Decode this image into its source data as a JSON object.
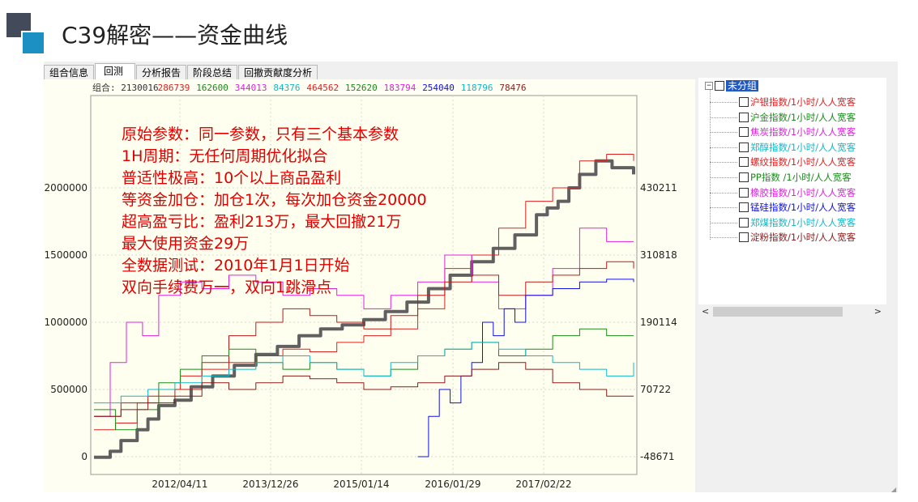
{
  "slide": {
    "title": "C39解密——资金曲线"
  },
  "tabs": [
    {
      "label": "组合信息",
      "active": false
    },
    {
      "label": "回测",
      "active": true
    },
    {
      "label": "分析报告",
      "active": false
    },
    {
      "label": "阶段总结",
      "active": false
    },
    {
      "label": "回撤贡献度分析",
      "active": false
    }
  ],
  "header_values": {
    "prefix": "组合: 2130016",
    "items": [
      {
        "value": "286739",
        "color": "#e02020"
      },
      {
        "value": "162600",
        "color": "#1a8a1a"
      },
      {
        "value": "344013",
        "color": "#e020e0"
      },
      {
        "value": "84376",
        "color": "#10b8c8"
      },
      {
        "value": "464562",
        "color": "#e02020"
      },
      {
        "value": "152620",
        "color": "#1a8a1a"
      },
      {
        "value": "183794",
        "color": "#e020e0"
      },
      {
        "value": "254040",
        "color": "#1010e0"
      },
      {
        "value": "118796",
        "color": "#10b8c8"
      },
      {
        "value": "78476",
        "color": "#8b1a1a"
      }
    ]
  },
  "annotations": [
    "原始参数：同一参数，只有三个基本参数",
    "1H周期：无任何周期优化拟合",
    "普适性极高：10个以上商品盈利",
    "等资金加仓：加仓1次，每次加仓资金20000",
    "超高盈亏比：盈利213万，最大回撤21万",
    "最大使用资金29万",
    "全数据测试：2010年1月1日开始",
    "双向手续费万一，双向1跳滑点"
  ],
  "chart_data": {
    "type": "line",
    "x_ticks": [
      "2012/04/11",
      "2013/12/26",
      "2015/01/14",
      "2016/01/29",
      "2017/02/22"
    ],
    "left_axis": {
      "ticks": [
        "2000000",
        "1500000",
        "1000000",
        "500000",
        "0"
      ],
      "range": [
        0,
        2000000
      ]
    },
    "right_axis": {
      "ticks": [
        "430211",
        "310818",
        "190114",
        "70722",
        "-48671"
      ]
    },
    "grid": true,
    "series": [
      {
        "color": "#606060",
        "width": 4,
        "points": [
          [
            0,
            -5
          ],
          [
            3,
            40
          ],
          [
            5,
            120
          ],
          [
            8,
            200
          ],
          [
            10,
            280
          ],
          [
            12,
            380
          ],
          [
            15,
            420
          ],
          [
            18,
            520
          ],
          [
            22,
            600
          ],
          [
            26,
            680
          ],
          [
            30,
            760
          ],
          [
            34,
            820
          ],
          [
            38,
            900
          ],
          [
            42,
            950
          ],
          [
            46,
            980
          ],
          [
            50,
            1020
          ],
          [
            54,
            1080
          ],
          [
            58,
            1150
          ],
          [
            62,
            1250
          ],
          [
            66,
            1350
          ],
          [
            70,
            1450
          ],
          [
            74,
            1550
          ],
          [
            78,
            1650
          ],
          [
            82,
            1800
          ],
          [
            84,
            1850
          ],
          [
            86,
            1900
          ],
          [
            88,
            2000
          ],
          [
            90,
            2100
          ],
          [
            93,
            2200
          ],
          [
            96,
            2150
          ],
          [
            100,
            2100
          ]
        ]
      },
      {
        "color": "#e02020",
        "width": 1,
        "points": [
          [
            0,
            200
          ],
          [
            4,
            250
          ],
          [
            8,
            400
          ],
          [
            12,
            500
          ],
          [
            16,
            600
          ],
          [
            20,
            650
          ],
          [
            25,
            700
          ],
          [
            30,
            750
          ],
          [
            35,
            800
          ],
          [
            40,
            780
          ],
          [
            45,
            850
          ],
          [
            50,
            900
          ],
          [
            55,
            950
          ],
          [
            60,
            1100
          ],
          [
            65,
            1400
          ],
          [
            70,
            1500
          ],
          [
            75,
            1700
          ],
          [
            80,
            1900
          ],
          [
            85,
            2000
          ],
          [
            90,
            2200
          ],
          [
            95,
            2250
          ],
          [
            100,
            2200
          ]
        ]
      },
      {
        "color": "#e020e0",
        "width": 1,
        "points": [
          [
            0,
            300
          ],
          [
            3,
            700
          ],
          [
            6,
            1000
          ],
          [
            9,
            900
          ],
          [
            12,
            1200
          ],
          [
            16,
            1300
          ],
          [
            20,
            1250
          ],
          [
            25,
            1350
          ],
          [
            30,
            1300
          ],
          [
            35,
            1200
          ],
          [
            40,
            1250
          ],
          [
            45,
            1200
          ],
          [
            50,
            1100
          ],
          [
            55,
            1200
          ],
          [
            60,
            1300
          ],
          [
            65,
            1500
          ],
          [
            70,
            1300
          ],
          [
            75,
            1100
          ],
          [
            80,
            1200
          ],
          [
            85,
            1400
          ],
          [
            90,
            1700
          ],
          [
            95,
            1600
          ],
          [
            100,
            1600
          ]
        ]
      },
      {
        "color": "#c01818",
        "width": 1,
        "points": [
          [
            0,
            300
          ],
          [
            5,
            400
          ],
          [
            10,
            450
          ],
          [
            15,
            500
          ],
          [
            20,
            700
          ],
          [
            25,
            900
          ],
          [
            30,
            1000
          ],
          [
            35,
            1100
          ],
          [
            40,
            1050
          ],
          [
            45,
            1000
          ],
          [
            50,
            950
          ],
          [
            55,
            1050
          ],
          [
            60,
            1200
          ],
          [
            65,
            1300
          ],
          [
            70,
            1350
          ],
          [
            75,
            1200
          ],
          [
            80,
            1300
          ],
          [
            85,
            1350
          ],
          [
            90,
            1400
          ],
          [
            95,
            1450
          ],
          [
            100,
            1400
          ]
        ]
      },
      {
        "color": "#1a8a1a",
        "width": 1,
        "points": [
          [
            0,
            350
          ],
          [
            4,
            200
          ],
          [
            8,
            350
          ],
          [
            12,
            550
          ],
          [
            16,
            650
          ],
          [
            20,
            750
          ],
          [
            25,
            800
          ],
          [
            30,
            700
          ],
          [
            35,
            650
          ],
          [
            40,
            700
          ],
          [
            45,
            650
          ],
          [
            50,
            600
          ],
          [
            55,
            650
          ],
          [
            60,
            750
          ],
          [
            65,
            800
          ],
          [
            70,
            850
          ],
          [
            75,
            750
          ],
          [
            80,
            800
          ],
          [
            85,
            900
          ],
          [
            90,
            950
          ],
          [
            95,
            900
          ],
          [
            100,
            900
          ]
        ]
      },
      {
        "color": "#1010e0",
        "width": 1,
        "points": [
          [
            60,
            0
          ],
          [
            62,
            300
          ],
          [
            64,
            500
          ],
          [
            66,
            400
          ],
          [
            68,
            600
          ],
          [
            70,
            700
          ],
          [
            72,
            1000
          ],
          [
            74,
            900
          ],
          [
            76,
            1100
          ],
          [
            78,
            1000
          ],
          [
            80,
            1200
          ],
          [
            85,
            1250
          ],
          [
            90,
            1300
          ],
          [
            95,
            1320
          ],
          [
            100,
            1300
          ]
        ]
      },
      {
        "color": "#10b8c8",
        "width": 1,
        "points": [
          [
            0,
            400
          ],
          [
            5,
            450
          ],
          [
            10,
            500
          ],
          [
            15,
            550
          ],
          [
            20,
            600
          ],
          [
            25,
            650
          ],
          [
            30,
            700
          ],
          [
            35,
            750
          ],
          [
            40,
            700
          ],
          [
            45,
            650
          ],
          [
            50,
            600
          ],
          [
            55,
            700
          ],
          [
            60,
            750
          ],
          [
            65,
            800
          ],
          [
            70,
            850
          ],
          [
            75,
            800
          ],
          [
            80,
            750
          ],
          [
            85,
            700
          ],
          [
            90,
            650
          ],
          [
            95,
            600
          ],
          [
            100,
            700
          ]
        ]
      },
      {
        "color": "#8b1a1a",
        "width": 1,
        "points": [
          [
            0,
            300
          ],
          [
            5,
            350
          ],
          [
            10,
            400
          ],
          [
            15,
            450
          ],
          [
            20,
            550
          ],
          [
            25,
            500
          ],
          [
            30,
            550
          ],
          [
            35,
            600
          ],
          [
            40,
            580
          ],
          [
            45,
            550
          ],
          [
            50,
            500
          ],
          [
            55,
            520
          ],
          [
            60,
            550
          ],
          [
            65,
            600
          ],
          [
            70,
            650
          ],
          [
            75,
            700
          ],
          [
            80,
            650
          ],
          [
            85,
            550
          ],
          [
            90,
            500
          ],
          [
            95,
            450
          ],
          [
            100,
            450
          ]
        ]
      }
    ]
  },
  "tree": {
    "root_label": "未分组",
    "items": [
      {
        "label": "沪银指数/1小时/人人宽客",
        "color": "#e02020"
      },
      {
        "label": "沪金指数/1小时/人人宽客",
        "color": "#1a8a1a"
      },
      {
        "label": "焦炭指数/1小时/人人宽客",
        "color": "#e020e0"
      },
      {
        "label": "郑醇指数/1小时/人人宽客",
        "color": "#10b8c8"
      },
      {
        "label": "螺纹指数/1小时/人人宽客",
        "color": "#e02020"
      },
      {
        "label": "PP指数  /1小时/人人宽客",
        "color": "#1a8a1a"
      },
      {
        "label": "橡胶指数/1小时/人人宽客",
        "color": "#e020e0"
      },
      {
        "label": "锰硅指数/1小时/人人宽客",
        "color": "#1010e0"
      },
      {
        "label": "郑煤指数/1小时/人人宽客",
        "color": "#10b8c8"
      },
      {
        "label": "淀粉指数/1小时/人人宽客",
        "color": "#8b1a1a"
      }
    ]
  }
}
